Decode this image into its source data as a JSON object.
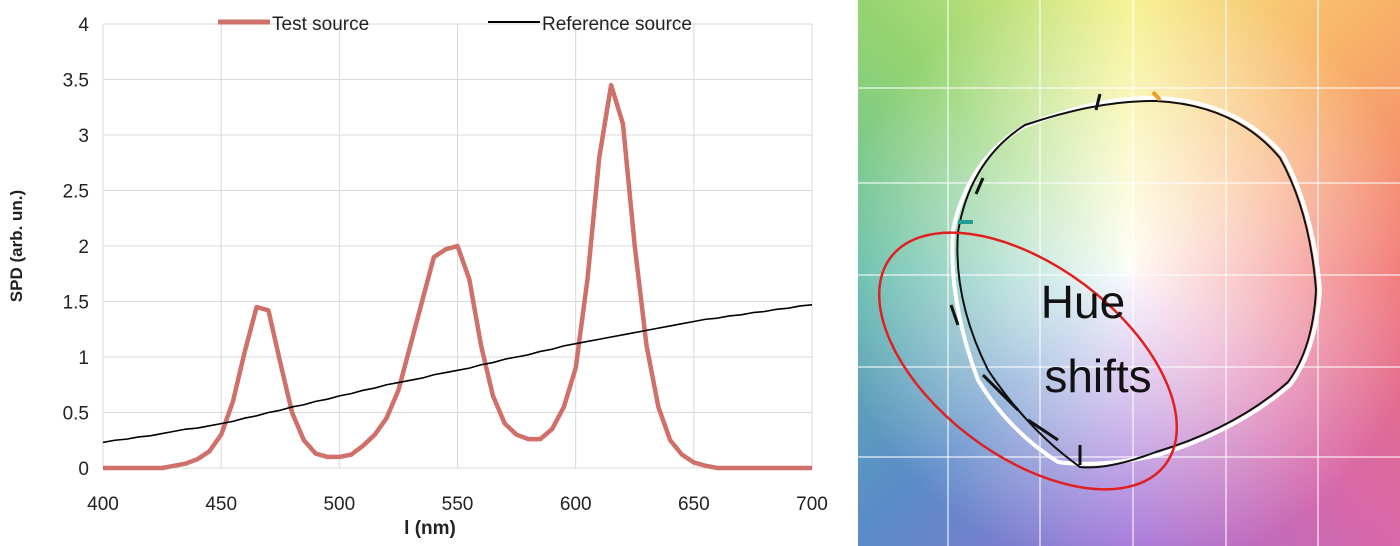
{
  "chart_data": {
    "type": "line",
    "xlabel": "l (nm)",
    "ylabel": "SPD (arb. un.)",
    "x": [
      400,
      405,
      410,
      415,
      420,
      425,
      430,
      435,
      440,
      445,
      450,
      455,
      460,
      465,
      470,
      475,
      480,
      485,
      490,
      495,
      500,
      505,
      510,
      515,
      520,
      525,
      530,
      535,
      540,
      545,
      550,
      555,
      560,
      565,
      570,
      575,
      580,
      585,
      590,
      595,
      600,
      605,
      610,
      615,
      620,
      625,
      630,
      635,
      640,
      645,
      650,
      655,
      660,
      665,
      670,
      675,
      680,
      685,
      690,
      695,
      700
    ],
    "series": [
      {
        "name": "Test source",
        "color": "#d0706a",
        "values": [
          0,
          0,
          0,
          0,
          0,
          0,
          0.02,
          0.04,
          0.08,
          0.15,
          0.3,
          0.6,
          1.05,
          1.45,
          1.42,
          0.95,
          0.5,
          0.25,
          0.13,
          0.1,
          0.1,
          0.12,
          0.2,
          0.3,
          0.45,
          0.7,
          1.1,
          1.5,
          1.9,
          1.97,
          2.0,
          1.7,
          1.1,
          0.65,
          0.4,
          0.3,
          0.26,
          0.26,
          0.35,
          0.55,
          0.9,
          1.7,
          2.8,
          3.45,
          3.1,
          2.0,
          1.1,
          0.55,
          0.25,
          0.12,
          0.05,
          0.02,
          0,
          0,
          0,
          0,
          0,
          0,
          0,
          0,
          0
        ]
      },
      {
        "name": "Reference source",
        "color": "#000000",
        "values": [
          0.23,
          0.25,
          0.26,
          0.28,
          0.29,
          0.31,
          0.33,
          0.35,
          0.36,
          0.38,
          0.4,
          0.42,
          0.45,
          0.47,
          0.5,
          0.52,
          0.55,
          0.57,
          0.6,
          0.62,
          0.65,
          0.67,
          0.7,
          0.72,
          0.75,
          0.77,
          0.79,
          0.81,
          0.84,
          0.86,
          0.88,
          0.9,
          0.93,
          0.95,
          0.98,
          1.0,
          1.02,
          1.05,
          1.07,
          1.1,
          1.12,
          1.14,
          1.16,
          1.18,
          1.2,
          1.22,
          1.24,
          1.26,
          1.28,
          1.3,
          1.32,
          1.34,
          1.35,
          1.37,
          1.38,
          1.4,
          1.41,
          1.43,
          1.44,
          1.46,
          1.47
        ]
      }
    ],
    "xlim": [
      400,
      700
    ],
    "xticks": [
      400,
      450,
      500,
      550,
      600,
      650,
      700
    ],
    "ylim": [
      0,
      4
    ],
    "yticks": [
      0,
      0.5,
      1,
      1.5,
      2,
      2.5,
      3,
      3.5,
      4
    ],
    "grid": true,
    "legend": "top"
  },
  "diagram": {
    "annotation_lines": [
      "Hue",
      "shifts"
    ]
  }
}
